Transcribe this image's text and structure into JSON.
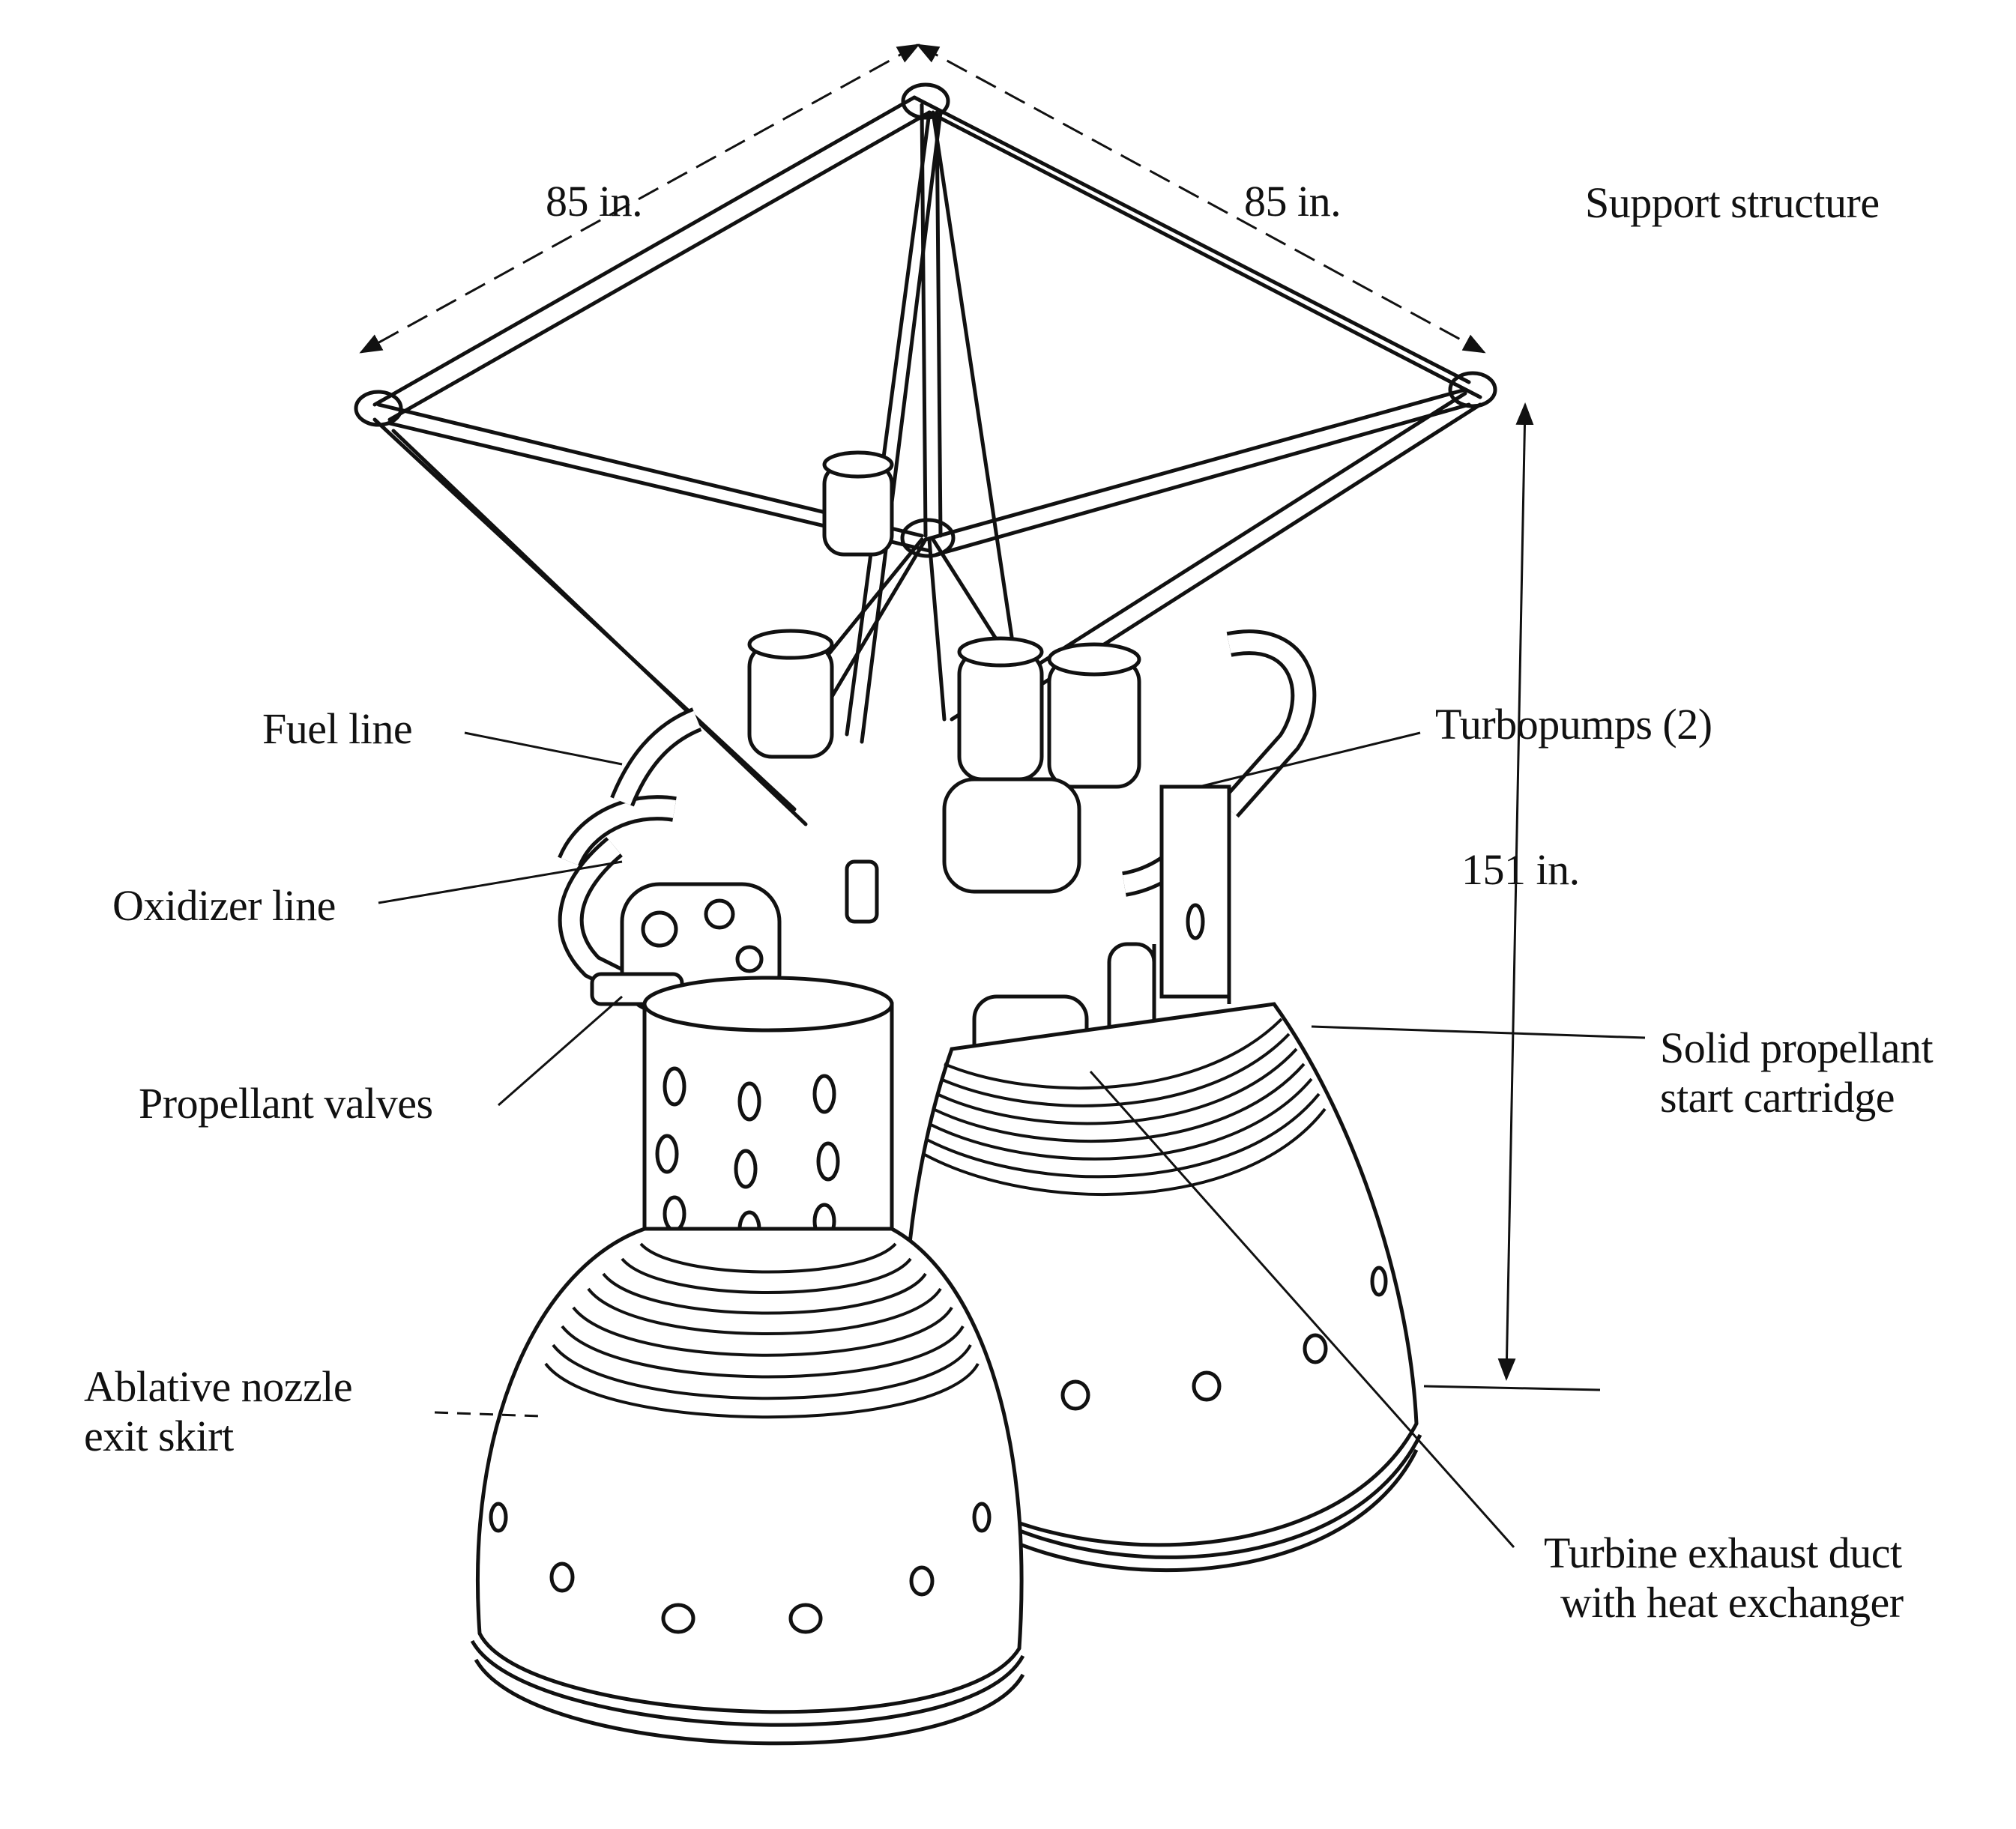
{
  "dimensions": {
    "width_left": "85 in.",
    "width_right": "85 in.",
    "height": "151 in."
  },
  "labels": {
    "support_structure": "Support structure",
    "fuel_line": "Fuel line",
    "turbopumps": "Turbopumps (2)",
    "oxidizer_line": "Oxidizer line",
    "propellant_valves": "Propellant valves",
    "start_cartridge_1": "Solid propellant",
    "start_cartridge_2": "start cartridge",
    "nozzle_skirt_1": "Ablative nozzle",
    "nozzle_skirt_2": "exit skirt",
    "turbine_exhaust_1": "Turbine exhaust duct",
    "turbine_exhaust_2": "with heat exchanger"
  },
  "colors": {
    "ink": "#111111",
    "paper": "#ffffff"
  }
}
